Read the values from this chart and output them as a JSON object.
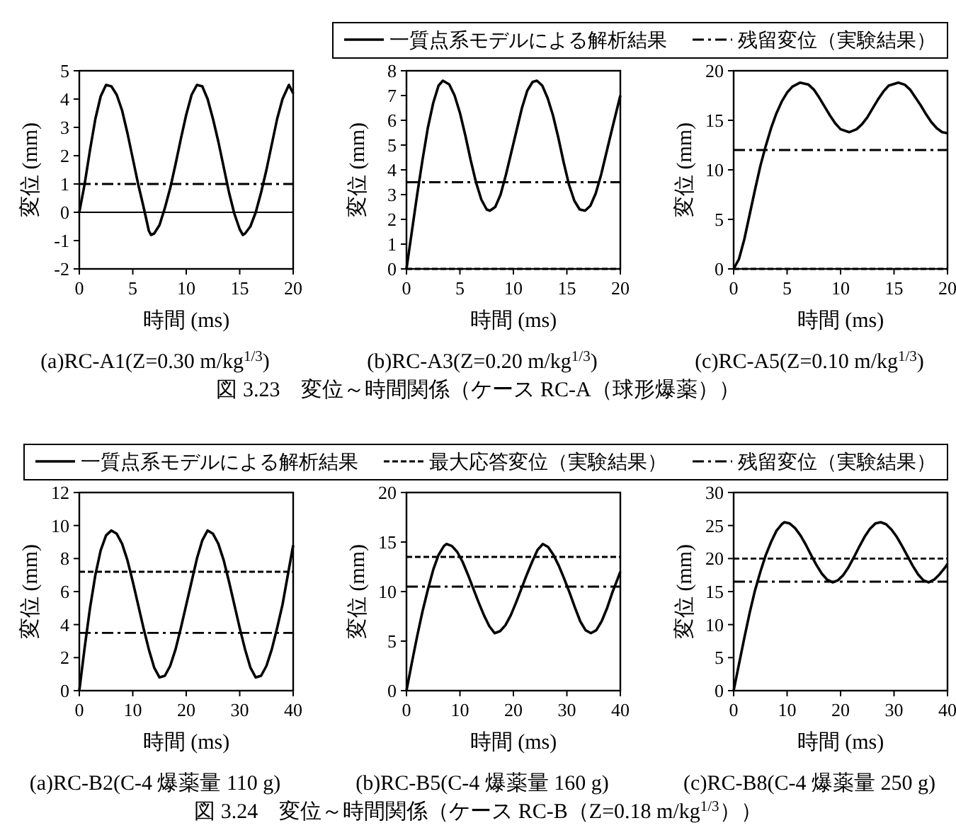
{
  "chart_data": [
    {
      "type": "line",
      "title": "(a)RC-A1(Z=0.30 m/kg$^{1/3}$)",
      "xlabel": "時間 (ms)",
      "ylabel": "変位 (mm)",
      "xlim": [
        0,
        20
      ],
      "xticks": [
        0,
        5,
        10,
        15,
        20
      ],
      "ylim": [
        -2,
        5
      ],
      "yticks": [
        -2,
        -1,
        0,
        1,
        2,
        3,
        4,
        5
      ],
      "annotations": [
        "図 3.23　変位～時間関係（ケース RC-A（球形爆薬））"
      ],
      "ref_lines": [
        {
          "axis": "y",
          "value": 0,
          "color": "#000000",
          "line_style": "solid"
        }
      ],
      "series": [
        {
          "color": "#000000",
          "line_style": "solid",
          "x": [
            0,
            0.5,
            1,
            1.5,
            2,
            2.5,
            3,
            3.5,
            4,
            4.5,
            5,
            5.5,
            6,
            6.5,
            6.7,
            7,
            7.5,
            8,
            8.5,
            9,
            9.5,
            10,
            10.5,
            11,
            11.5,
            12,
            12.5,
            13,
            13.5,
            14,
            14.5,
            15,
            15.3,
            15.5,
            16,
            16.5,
            17,
            17.5,
            18,
            18.5,
            19,
            19.6,
            20
          ],
          "values": [
            0,
            1.0,
            2.2,
            3.3,
            4.1,
            4.5,
            4.45,
            4.15,
            3.6,
            2.8,
            1.9,
            1.0,
            0.2,
            -0.65,
            -0.8,
            -0.75,
            -0.45,
            0.15,
            0.85,
            1.7,
            2.6,
            3.45,
            4.15,
            4.5,
            4.45,
            4.0,
            3.3,
            2.5,
            1.6,
            0.7,
            -0.05,
            -0.6,
            -0.8,
            -0.75,
            -0.5,
            0.0,
            0.7,
            1.5,
            2.4,
            3.3,
            4.0,
            4.5,
            4.2
          ]
        },
        {
          "color": "#000000",
          "line_style": "dashdot",
          "x": [
            0,
            20
          ],
          "values": [
            1,
            1
          ]
        }
      ]
    },
    {
      "type": "line",
      "title": "(b)RC-A3(Z=0.20 m/kg$^{1/3}$)",
      "xlabel": "時間 (ms)",
      "ylabel": "変位 (mm)",
      "xlim": [
        0,
        20
      ],
      "xticks": [
        0,
        5,
        10,
        15,
        20
      ],
      "ylim": [
        0,
        8
      ],
      "yticks": [
        0,
        1,
        2,
        3,
        4,
        5,
        6,
        7,
        8
      ],
      "series": [
        {
          "color": "#000000",
          "line_style": "solid",
          "x": [
            0,
            0.5,
            1,
            1.5,
            2,
            2.5,
            3,
            3.4,
            4,
            4.5,
            5,
            5.5,
            6,
            6.5,
            7,
            7.5,
            7.8,
            8.3,
            8.8,
            9.3,
            9.8,
            10.3,
            10.8,
            11.3,
            11.8,
            12.2,
            12.7,
            13.2,
            13.7,
            14.2,
            14.7,
            15.2,
            15.7,
            16.2,
            16.7,
            17.2,
            17.7,
            18.2,
            18.7,
            19.2,
            19.6,
            20
          ],
          "values": [
            0,
            1.5,
            3.0,
            4.4,
            5.7,
            6.7,
            7.4,
            7.6,
            7.45,
            7.0,
            6.3,
            5.4,
            4.4,
            3.5,
            2.8,
            2.4,
            2.35,
            2.5,
            3.0,
            3.8,
            4.7,
            5.6,
            6.5,
            7.2,
            7.55,
            7.6,
            7.4,
            6.9,
            6.2,
            5.3,
            4.3,
            3.4,
            2.75,
            2.4,
            2.35,
            2.55,
            3.05,
            3.8,
            4.7,
            5.6,
            6.3,
            7.0
          ]
        },
        {
          "color": "#000000",
          "line_style": "dashdot",
          "x": [
            0,
            20
          ],
          "values": [
            3.5,
            3.5
          ]
        },
        {
          "color": "#000000",
          "line_style": "dashed",
          "x": [
            0,
            20
          ],
          "values": [
            0,
            0
          ]
        }
      ]
    },
    {
      "type": "line",
      "title": "(c)RC-A5(Z=0.10 m/kg$^{1/3}$)",
      "xlabel": "時間 (ms)",
      "ylabel": "変位 (mm)",
      "xlim": [
        0,
        20
      ],
      "xticks": [
        0,
        5,
        10,
        15,
        20
      ],
      "ylim": [
        0,
        20
      ],
      "yticks": [
        0,
        5,
        10,
        15,
        20
      ],
      "legend": "top",
      "series": [
        {
          "name": "一質点系モデルによる解析結果",
          "color": "#000000",
          "line_style": "solid",
          "x": [
            0,
            0.5,
            1,
            1.5,
            2,
            2.5,
            3,
            3.5,
            4,
            4.5,
            5,
            5.5,
            6.2,
            7,
            7.5,
            8,
            8.5,
            9,
            9.5,
            10,
            10.8,
            11.5,
            12,
            12.5,
            13,
            13.5,
            14,
            14.5,
            15.4,
            16,
            16.5,
            17,
            17.5,
            18,
            18.5,
            19,
            19.5,
            20
          ],
          "values": [
            0,
            1.0,
            3.0,
            5.5,
            8.0,
            10.4,
            12.4,
            14.2,
            15.7,
            16.9,
            17.8,
            18.4,
            18.8,
            18.6,
            18.1,
            17.3,
            16.4,
            15.5,
            14.7,
            14.1,
            13.8,
            14.1,
            14.6,
            15.3,
            16.2,
            17.1,
            17.9,
            18.5,
            18.8,
            18.6,
            18.1,
            17.3,
            16.5,
            15.6,
            14.8,
            14.2,
            13.8,
            13.7
          ]
        },
        {
          "name": "残留変位（実験結果）",
          "color": "#000000",
          "line_style": "dashdot",
          "x": [
            0,
            20
          ],
          "values": [
            12,
            12
          ]
        },
        {
          "color": "#000000",
          "line_style": "dashed",
          "x": [
            0,
            20
          ],
          "values": [
            0,
            0
          ]
        }
      ]
    },
    {
      "type": "line",
      "title": "(a)RC-B2(C-4 爆薬量 110 g)",
      "xlabel": "時間 (ms)",
      "ylabel": "変位 (mm)",
      "xlim": [
        0,
        40
      ],
      "xticks": [
        0,
        10,
        20,
        30,
        40
      ],
      "ylim": [
        0,
        12
      ],
      "yticks": [
        0,
        2,
        4,
        6,
        8,
        10,
        12
      ],
      "legend": "top",
      "annotations": [
        "図 3.24　変位～時間関係（ケース RC-B（Z=0.18 m/kg$^{1/3}$））"
      ],
      "series": [
        {
          "name": "一質点系モデルによる解析結果",
          "color": "#000000",
          "line_style": "solid",
          "x": [
            0,
            1,
            2,
            3,
            4,
            5,
            6,
            7,
            8,
            9,
            10,
            11,
            12,
            13,
            14,
            15,
            16,
            17,
            18,
            19,
            20,
            21,
            22,
            23,
            24,
            25,
            26,
            27,
            28,
            29,
            30,
            31,
            32,
            33,
            34,
            35,
            36,
            37,
            38,
            39,
            40
          ],
          "values": [
            0,
            2.6,
            5.0,
            7.0,
            8.5,
            9.4,
            9.7,
            9.5,
            8.9,
            7.9,
            6.6,
            5.2,
            3.8,
            2.5,
            1.4,
            0.8,
            0.9,
            1.5,
            2.5,
            3.8,
            5.2,
            6.6,
            8.0,
            9.1,
            9.7,
            9.5,
            8.9,
            7.9,
            6.6,
            5.2,
            3.8,
            2.5,
            1.4,
            0.8,
            0.9,
            1.5,
            2.5,
            3.8,
            5.2,
            7.0,
            8.8
          ]
        },
        {
          "name": "最大応答変位（実験結果）",
          "color": "#000000",
          "line_style": "dashed",
          "x": [
            0,
            40
          ],
          "values": [
            7.2,
            7.2
          ]
        },
        {
          "name": "残留変位（実験結果）",
          "color": "#000000",
          "line_style": "dashdot",
          "x": [
            0,
            40
          ],
          "values": [
            3.5,
            3.5
          ]
        }
      ]
    },
    {
      "type": "line",
      "title": "(b)RC-B5(C-4 爆薬量 160 g)",
      "xlabel": "時間 (ms)",
      "ylabel": "変位 (mm)",
      "xlim": [
        0,
        40
      ],
      "xticks": [
        0,
        10,
        20,
        30,
        40
      ],
      "ylim": [
        0,
        20
      ],
      "yticks": [
        0,
        5,
        10,
        15,
        20
      ],
      "series": [
        {
          "color": "#000000",
          "line_style": "solid",
          "x": [
            0,
            1,
            2,
            3,
            4,
            5,
            6,
            7,
            7.5,
            8.5,
            9.5,
            10.5,
            11.5,
            12.5,
            13.5,
            14.5,
            15.5,
            16.5,
            17.5,
            18.5,
            19.5,
            20.5,
            21.5,
            22.5,
            23.5,
            24.5,
            25.5,
            26.5,
            27.5,
            28.5,
            29.5,
            30.5,
            31.5,
            32.5,
            33.5,
            34.5,
            35.5,
            36.5,
            37.5,
            38.5,
            39.5,
            40
          ],
          "values": [
            0,
            2.8,
            5.5,
            8.0,
            10.2,
            12.2,
            13.7,
            14.6,
            14.8,
            14.6,
            14.0,
            13.0,
            11.7,
            10.3,
            8.9,
            7.6,
            6.5,
            5.8,
            6.0,
            6.6,
            7.6,
            8.9,
            10.3,
            11.7,
            13.0,
            14.2,
            14.8,
            14.5,
            13.7,
            12.6,
            11.3,
            9.9,
            8.4,
            7.0,
            6.1,
            5.8,
            6.1,
            7.0,
            8.3,
            9.9,
            11.3,
            12.0
          ]
        },
        {
          "color": "#000000",
          "line_style": "dashed",
          "x": [
            0,
            40
          ],
          "values": [
            13.5,
            13.5
          ]
        },
        {
          "color": "#000000",
          "line_style": "dashdot",
          "x": [
            0,
            40
          ],
          "values": [
            10.5,
            10.5
          ]
        }
      ]
    },
    {
      "type": "line",
      "title": "(c)RC-B8(C-4 爆薬量 250 g)",
      "xlabel": "時間 (ms)",
      "ylabel": "変位 (mm)",
      "xlim": [
        0,
        40
      ],
      "xticks": [
        0,
        10,
        20,
        30,
        40
      ],
      "ylim": [
        0,
        30
      ],
      "yticks": [
        0,
        5,
        10,
        15,
        20,
        25,
        30
      ],
      "series": [
        {
          "color": "#000000",
          "line_style": "solid",
          "x": [
            0,
            1,
            2,
            3,
            4,
            5,
            6,
            7,
            8,
            9,
            9.5,
            10.5,
            11.5,
            12.5,
            13.5,
            14.5,
            15.5,
            16.5,
            17.5,
            18.5,
            19.5,
            20.5,
            21.5,
            22.5,
            23.5,
            24.5,
            25.5,
            26.5,
            27.5,
            28.5,
            29.5,
            30.5,
            31.5,
            32.5,
            33.5,
            34.5,
            35.5,
            36.5,
            37.5,
            38.5,
            39.5,
            40
          ],
          "values": [
            0,
            4.0,
            8.0,
            11.8,
            15.2,
            18.0,
            20.5,
            22.5,
            24.2,
            25.2,
            25.5,
            25.3,
            24.6,
            23.5,
            22.1,
            20.5,
            19.0,
            17.7,
            16.8,
            16.4,
            16.7,
            17.5,
            18.7,
            20.2,
            21.8,
            23.3,
            24.5,
            25.3,
            25.5,
            25.2,
            24.4,
            23.3,
            21.9,
            20.4,
            18.9,
            17.6,
            16.7,
            16.4,
            16.8,
            17.6,
            18.6,
            19.2
          ]
        },
        {
          "color": "#000000",
          "line_style": "dashed",
          "x": [
            0,
            40
          ],
          "values": [
            20,
            20
          ]
        },
        {
          "color": "#000000",
          "line_style": "dashdot",
          "x": [
            0,
            40
          ],
          "values": [
            16.5,
            16.5
          ]
        }
      ]
    }
  ]
}
